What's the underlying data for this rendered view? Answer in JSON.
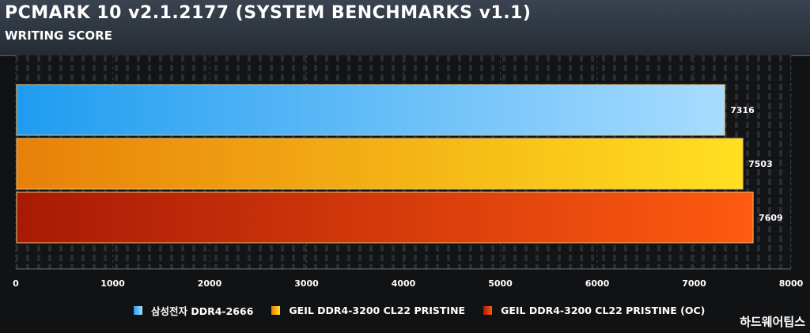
{
  "header": {
    "title": "PCMARK 10 v2.1.2177 (SYSTEM BENCHMARKS v1.1)",
    "subtitle": "WRITING SCORE"
  },
  "watermark": "하드웨어팁스",
  "colors": {
    "background": "#111214",
    "grid_pattern": "#2a2c30",
    "bar_outline": "#e8c070"
  },
  "chart_data": {
    "type": "bar",
    "orientation": "horizontal",
    "title": "PCMARK 10 v2.1.2177 (SYSTEM BENCHMARKS v1.1)",
    "subtitle": "WRITING SCORE",
    "xlim": [
      0,
      8000
    ],
    "xticks": [
      0,
      1000,
      2000,
      3000,
      4000,
      5000,
      6000,
      7000,
      8000
    ],
    "grid": true,
    "legend_position": "bottom",
    "series": [
      {
        "name": "삼성전자 DDR4-2666",
        "value": 7316,
        "label": "7316",
        "color_start": "#1e9cf0",
        "color_end": "#a8dcff"
      },
      {
        "name": "GEIL DDR4-3200 CL22 PRISTINE",
        "value": 7503,
        "label": "7503",
        "color_start": "#e8800a",
        "color_end": "#ffe020"
      },
      {
        "name": "GEIL DDR4-3200 CL22 PRISTINE (OC)",
        "value": 7609,
        "label": "7609",
        "color_start": "#a81a06",
        "color_end": "#ff5a10"
      }
    ]
  }
}
